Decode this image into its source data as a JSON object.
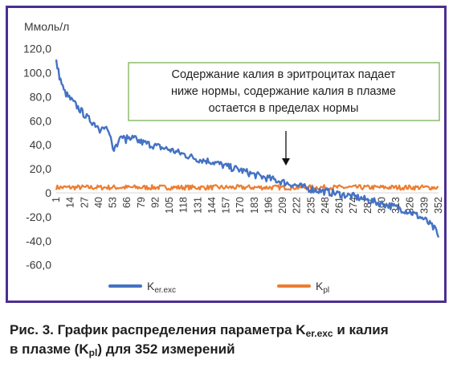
{
  "chart_data": {
    "type": "line",
    "ylabel": "Ммоль/л",
    "ylim": [
      -60,
      120
    ],
    "ytick_step": 20,
    "ytick_labels": [
      "120,0",
      "100,0",
      "80,0",
      "60,0",
      "40,0",
      "20,0",
      "0",
      "-20,0",
      "-40,0",
      "-60,0"
    ],
    "xlim": [
      1,
      352
    ],
    "xtick_labels": [
      "1",
      "14",
      "27",
      "40",
      "53",
      "66",
      "79",
      "92",
      "105",
      "118",
      "131",
      "144",
      "157",
      "170",
      "183",
      "196",
      "209",
      "222",
      "235",
      "248",
      "261",
      "274",
      "287",
      "300",
      "313",
      "326",
      "339",
      "352"
    ],
    "grid": false,
    "legend_position": "bottom",
    "series": [
      {
        "name": "Ker.exc",
        "color": "#4472c4",
        "x": [
          1,
          4,
          8,
          12,
          20,
          30,
          40,
          50,
          53,
          60,
          70,
          80,
          92,
          105,
          118,
          131,
          144,
          157,
          170,
          183,
          196,
          209,
          222,
          235,
          248,
          261,
          274,
          287,
          300,
          313,
          326,
          339,
          345,
          350,
          352
        ],
        "values": [
          109,
          97,
          85,
          80,
          72,
          62,
          55,
          50,
          38,
          46,
          45,
          42,
          39,
          36,
          32,
          28,
          26,
          22,
          19,
          15,
          12,
          9,
          6,
          3,
          1,
          -1,
          -3,
          -6,
          -9,
          -12,
          -16,
          -22,
          -27,
          -32,
          -38
        ]
      },
      {
        "name": "Kpl",
        "color": "#ed7d31",
        "x": [
          1,
          352
        ],
        "values": [
          4.5,
          4.5
        ]
      }
    ],
    "annotations": [
      {
        "text_lines": [
          "Содержание калия в эритроцитах падает",
          "ниже нормы, содержание калия в плазме",
          "остается в пределах нормы"
        ],
        "box_color": "#70ad47",
        "arrow_points_to_x": 209
      }
    ]
  },
  "legend": {
    "exc_base": "K",
    "exc_sub": "er.exc",
    "pl_base": "K",
    "pl_sub": "pl"
  },
  "caption": {
    "prefix": "Рис. 3. График распределения параметра ",
    "k1": "K",
    "k1_sub": "er.exc",
    "middle": " и калия",
    "line2_start": "в плазме (",
    "k2": "K",
    "k2_sub": "pl",
    "end": ") для 352 измерений"
  },
  "colors": {
    "frame": "#4b2f91",
    "exc": "#4472c4",
    "pl": "#ed7d31",
    "note_border": "#70ad47",
    "axis": "#d9d9d9"
  }
}
